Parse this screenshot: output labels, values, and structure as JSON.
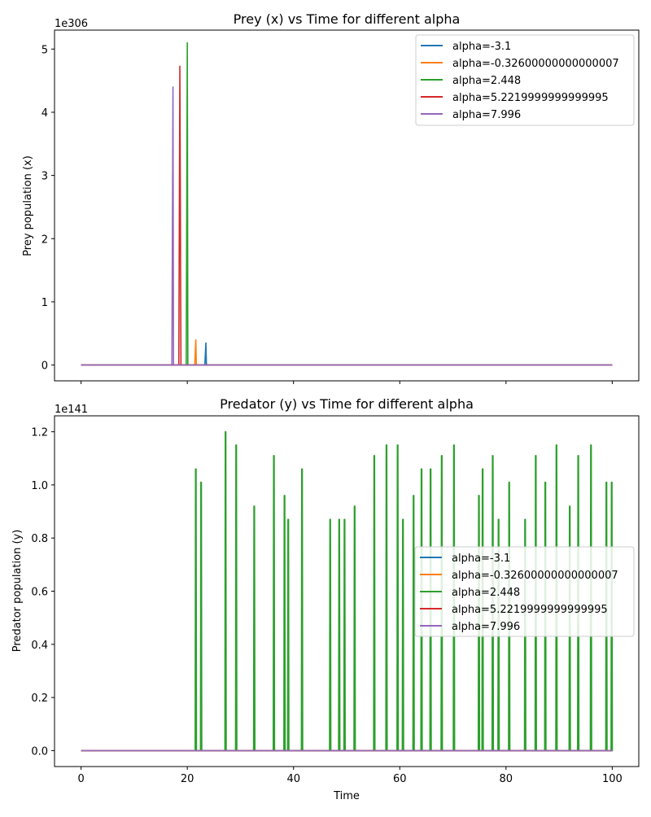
{
  "colors": {
    "series": [
      "#1f77b4",
      "#ff7f0e",
      "#2ca02c",
      "#d62728",
      "#9467bd"
    ],
    "axis": "#000000",
    "legend_border": "#cccccc"
  },
  "chart_data": [
    {
      "type": "line",
      "title": "Prey (x) vs Time for different alpha",
      "xlabel": "",
      "ylabel": "Prey population (x)",
      "y_offset_label": "1e306",
      "xlim": [
        -5,
        105
      ],
      "ylim": [
        -0.25,
        5.3
      ],
      "xticks": [
        0,
        20,
        40,
        60,
        80,
        100
      ],
      "xtick_labels_visible": false,
      "yticks": [
        0,
        1,
        2,
        3,
        4,
        5
      ],
      "ytick_labels": [
        "0",
        "1",
        "2",
        "3",
        "4",
        "5"
      ],
      "grid": false,
      "legend_position": "top-right",
      "series": [
        {
          "name": "alpha=-3.1",
          "points": [
            [
              0,
              0
            ],
            [
              23.3,
              0
            ],
            [
              23.5,
              0.35
            ],
            [
              23.6,
              0
            ],
            [
              100,
              0
            ]
          ]
        },
        {
          "name": "alpha=-0.32600000000000007",
          "points": [
            [
              0,
              0
            ],
            [
              21.4,
              0
            ],
            [
              21.6,
              0.4
            ],
            [
              21.7,
              0
            ],
            [
              100,
              0
            ]
          ]
        },
        {
          "name": "alpha=2.448",
          "points": [
            [
              0,
              0
            ],
            [
              19.8,
              0
            ],
            [
              20.0,
              5.1
            ],
            [
              20.1,
              0
            ],
            [
              100,
              0
            ]
          ]
        },
        {
          "name": "alpha=5.2219999999999995",
          "points": [
            [
              0,
              0
            ],
            [
              18.4,
              0
            ],
            [
              18.6,
              4.73
            ],
            [
              18.8,
              0
            ],
            [
              100,
              0
            ]
          ]
        },
        {
          "name": "alpha=7.996",
          "points": [
            [
              0,
              0
            ],
            [
              17.1,
              0
            ],
            [
              17.3,
              4.4
            ],
            [
              17.4,
              0
            ],
            [
              100,
              0
            ]
          ]
        }
      ]
    },
    {
      "type": "line",
      "title": "Predator (y) vs Time for different alpha",
      "xlabel": "Time",
      "ylabel": "Predator population (y)",
      "y_offset_label": "1e141",
      "xlim": [
        -5,
        105
      ],
      "ylim": [
        -0.06,
        1.26
      ],
      "xticks": [
        0,
        20,
        40,
        60,
        80,
        100
      ],
      "xtick_labels": [
        "0",
        "20",
        "40",
        "60",
        "80",
        "100"
      ],
      "yticks": [
        0,
        0.2,
        0.4,
        0.6,
        0.8,
        1.0,
        1.2
      ],
      "ytick_labels": [
        "0.0",
        "0.2",
        "0.4",
        "0.6",
        "0.8",
        "1.0",
        "1.2"
      ],
      "grid": false,
      "legend_position": "center-right",
      "series": [
        {
          "name": "alpha=-3.1",
          "spikes": []
        },
        {
          "name": "alpha=-0.32600000000000007",
          "spikes": []
        },
        {
          "name": "alpha=2.448",
          "spikes": [
            [
              21.6,
              1.06
            ],
            [
              22.6,
              1.01
            ],
            [
              27.2,
              1.2
            ],
            [
              29.2,
              1.15
            ],
            [
              32.6,
              0.92
            ],
            [
              36.3,
              1.11
            ],
            [
              38.3,
              0.96
            ],
            [
              39.0,
              0.87
            ],
            [
              41.6,
              1.06
            ],
            [
              46.9,
              0.87
            ],
            [
              48.6,
              0.87
            ],
            [
              49.6,
              0.87
            ],
            [
              51.5,
              0.92
            ],
            [
              55.2,
              1.11
            ],
            [
              57.5,
              1.15
            ],
            [
              59.6,
              1.15
            ],
            [
              60.6,
              0.87
            ],
            [
              62.6,
              0.96
            ],
            [
              64.1,
              1.06
            ],
            [
              65.8,
              1.06
            ],
            [
              67.9,
              1.11
            ],
            [
              70.2,
              1.15
            ],
            [
              74.9,
              0.96
            ],
            [
              75.6,
              1.06
            ],
            [
              77.5,
              1.11
            ],
            [
              78.6,
              0.87
            ],
            [
              80.6,
              1.01
            ],
            [
              83.6,
              0.87
            ],
            [
              85.6,
              1.11
            ],
            [
              87.4,
              1.01
            ],
            [
              89.5,
              1.15
            ],
            [
              92.0,
              0.92
            ],
            [
              93.6,
              1.11
            ],
            [
              96.0,
              1.15
            ],
            [
              98.9,
              1.01
            ],
            [
              99.9,
              1.01
            ]
          ]
        },
        {
          "name": "alpha=5.2219999999999995",
          "spikes": []
        },
        {
          "name": "alpha=7.996",
          "spikes": []
        }
      ]
    }
  ]
}
